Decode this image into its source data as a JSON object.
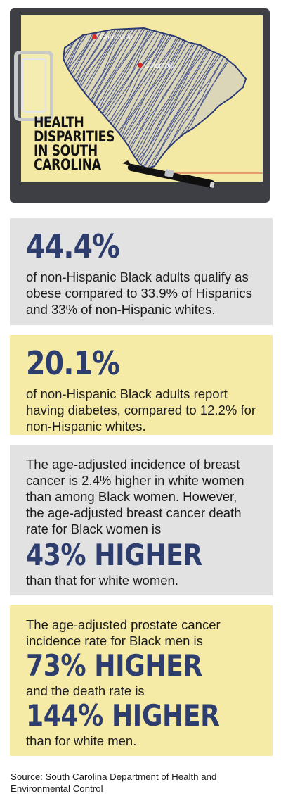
{
  "header": {
    "title": "HEALTH DISPARITIES IN SOUTH CAROLINA",
    "title_lines": [
      "HEALTH",
      "DISPARITIES",
      "IN SOUTH",
      "CAROLINA"
    ],
    "cities": [
      "Greenville",
      "Columbia"
    ],
    "icons": [
      "clipboard-icon",
      "south-carolina-map-icon",
      "pen-icon"
    ],
    "colors": {
      "board": "#3d3f44",
      "paper": "#f3e9a4",
      "map_scribble": "#3a4a8a",
      "city_dot": "#d22b2b"
    }
  },
  "stats": [
    {
      "headline": "44.4%",
      "text": "of non-Hispanic Black adults qualify as obese compared to 33.9% of Hispanics and 33% of non-Hispanic whites."
    },
    {
      "headline": "20.1%",
      "text": "of non-Hispanic Black adults report having diabetes, compared to 12.2% for non-Hispanic whites."
    },
    {
      "intro": "The age-adjusted incidence of breast cancer is 2.4% higher in white women than among Black women. However, the age-adjusted breast cancer death rate for Black women is",
      "headline": "43% HIGHER",
      "outro": "than that for white women."
    },
    {
      "intro": "The age-adjusted prostate cancer incidence rate for Black men is",
      "headline": "73% HIGHER",
      "middle": "and the death rate is",
      "headline2": "144% HIGHER",
      "outro": "than for white men."
    }
  ],
  "source": "Source: South Carolina Department of Health and Environmental Control",
  "colors": {
    "accent": "#2d3d6e",
    "panel_gray": "#e2e2e3",
    "panel_yellow": "#f5eba6"
  }
}
